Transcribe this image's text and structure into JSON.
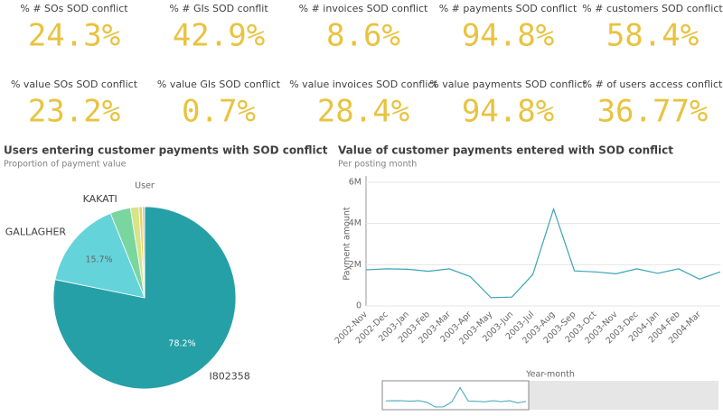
{
  "kpis": [
    {
      "label": "% # SOs SOD conflict",
      "value": "24.3%"
    },
    {
      "label": "% # GIs SOD conflit",
      "value": "42.9%"
    },
    {
      "label": "% # invoices SOD conflict",
      "value": "8.6%"
    },
    {
      "label": "% # payments SOD conflict",
      "value": "94.8%"
    },
    {
      "label": "% # customers SOD conflict",
      "value": "58.4%"
    },
    {
      "label": "% value SOs SOD conflict",
      "value": "23.2%"
    },
    {
      "label": "% value GIs SOD conflict",
      "value": "0.7%"
    },
    {
      "label": "% value invoices SOD conflict",
      "value": "28.4%"
    },
    {
      "label": "% value payments SOD conflict",
      "value": "94.8%"
    },
    {
      "label": "% # of users access conflict",
      "value": "36.77%"
    }
  ],
  "chart_data": [
    {
      "type": "pie",
      "title": "Users entering customer payments with SOD conflict",
      "subtitle": "Proportion of payment value",
      "legend_title": "User",
      "categories": [
        "I802358",
        "GALLAGHER",
        "KAKATI",
        null,
        null,
        null
      ],
      "values": [
        78.2,
        15.7,
        3.6,
        1.5,
        0.6,
        0.4
      ],
      "value_labels": [
        "78.2%",
        "15.7%",
        null,
        null,
        null,
        null
      ],
      "colors": [
        "#26a0a7",
        "#65d3da",
        "#79d69f",
        "#d6e48a",
        "#f0d060",
        "#c8c8c8"
      ]
    },
    {
      "type": "line",
      "title": "Value of customer payments entered with SOD conflict",
      "subtitle": "Per posting month",
      "ylabel": "Payment amount",
      "xlabel": "Year-month",
      "categories": [
        "2002-Nov",
        "2002-Dec",
        "2003-Jan",
        "2003-Feb",
        "2003-Mar",
        "2003-Apr",
        "2003-May",
        "2003-Jun",
        "2003-Jul",
        "2003-Aug",
        "2003-Sep",
        "2003-Oct",
        "2003-Nov",
        "2003-Dec",
        "2004-Jan",
        "2004-Feb",
        "2004-Mar",
        null
      ],
      "series": [
        {
          "name": "Payment amount",
          "color": "#3ba5b4",
          "values": [
            1750000,
            1800000,
            1780000,
            1680000,
            1800000,
            1420000,
            400000,
            430000,
            1520000,
            4700000,
            1700000,
            1650000,
            1560000,
            1800000,
            1580000,
            1800000,
            1300000,
            1650000
          ]
        }
      ],
      "ylim": [
        0,
        6000000
      ],
      "yticks": [
        0,
        {
          "value": 2000000,
          "label": "2M"
        },
        {
          "value": 4000000,
          "label": "4M"
        },
        {
          "value": 6000000,
          "label": "6M"
        }
      ],
      "grid": true
    }
  ]
}
